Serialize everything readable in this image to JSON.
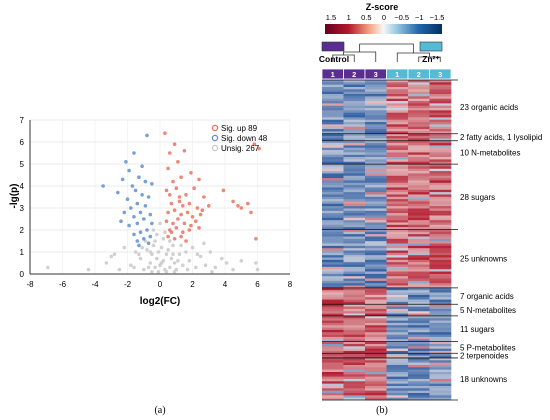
{
  "panel_a": {
    "caption": "(a)",
    "chart_data": {
      "type": "scatter",
      "xlabel": "log2(FC)",
      "ylabel": "-lg(p)",
      "xlim": [
        -8,
        8
      ],
      "ylim": [
        0,
        7
      ],
      "x_ticks": [
        -8,
        -6,
        -4,
        -2,
        0,
        2,
        4,
        6,
        8
      ],
      "y_ticks": [
        0,
        1,
        2,
        3,
        4,
        5,
        6,
        7
      ],
      "legend_position": "top-right",
      "series": [
        {
          "name": "Sig. up 89",
          "color": "#e8735f",
          "points": [
            [
              0.3,
              6.4
            ],
            [
              0.6,
              5.5
            ],
            [
              0.9,
              5.9
            ],
            [
              1.5,
              5.6
            ],
            [
              1.1,
              5.1
            ],
            [
              0.5,
              4.8
            ],
            [
              0.8,
              4.2
            ],
            [
              1.9,
              4.6
            ],
            [
              1.3,
              4.4
            ],
            [
              2.4,
              4.3
            ],
            [
              0.4,
              3.8
            ],
            [
              0.6,
              3.6
            ],
            [
              1.0,
              3.9
            ],
            [
              1.2,
              3.5
            ],
            [
              1.6,
              3.6
            ],
            [
              2.1,
              3.9
            ],
            [
              2.7,
              3.5
            ],
            [
              0.7,
              3.2
            ],
            [
              1.4,
              3.1
            ],
            [
              1.8,
              3.2
            ],
            [
              2.3,
              3.0
            ],
            [
              3.0,
              3.1
            ],
            [
              0.5,
              2.8
            ],
            [
              0.9,
              2.9
            ],
            [
              1.3,
              2.7
            ],
            [
              1.7,
              2.8
            ],
            [
              2.0,
              2.6
            ],
            [
              2.5,
              2.7
            ],
            [
              0.4,
              2.4
            ],
            [
              0.8,
              2.3
            ],
            [
              1.1,
              2.5
            ],
            [
              1.5,
              2.3
            ],
            [
              1.9,
              2.2
            ],
            [
              2.2,
              2.4
            ],
            [
              0.6,
              2.0
            ],
            [
              1.0,
              2.1
            ],
            [
              1.4,
              1.9
            ],
            [
              1.8,
              2.0
            ],
            [
              2.4,
              2.1
            ],
            [
              0.5,
              1.7
            ],
            [
              0.9,
              1.6
            ],
            [
              1.3,
              1.7
            ],
            [
              1.6,
              1.5
            ],
            [
              4.5,
              3.3
            ],
            [
              4.8,
              3.1
            ],
            [
              5.0,
              3.0
            ],
            [
              5.4,
              3.2
            ],
            [
              5.6,
              2.8
            ],
            [
              5.8,
              5.9
            ],
            [
              6.1,
              5.7
            ],
            [
              3.9,
              3.8
            ],
            [
              5.9,
              1.6
            ],
            [
              1.2,
              3.3
            ],
            [
              2.6,
              2.9
            ],
            [
              0.7,
              1.9
            ]
          ]
        },
        {
          "name": "Sig. down 48",
          "color": "#5f8fd0",
          "points": [
            [
              -0.8,
              6.3
            ],
            [
              -2.1,
              5.1
            ],
            [
              -1.9,
              4.7
            ],
            [
              -1.6,
              5.5
            ],
            [
              -2.3,
              4.3
            ],
            [
              -1.3,
              4.4
            ],
            [
              -1.7,
              4.0
            ],
            [
              -0.9,
              4.2
            ],
            [
              -1.5,
              3.8
            ],
            [
              -1.1,
              3.6
            ],
            [
              -0.7,
              3.5
            ],
            [
              -2.0,
              3.4
            ],
            [
              -1.4,
              3.2
            ],
            [
              -0.9,
              3.1
            ],
            [
              -1.8,
              3.0
            ],
            [
              -1.2,
              2.8
            ],
            [
              -0.6,
              2.7
            ],
            [
              -2.2,
              2.8
            ],
            [
              -1.6,
              2.6
            ],
            [
              -1.0,
              2.5
            ],
            [
              -0.5,
              2.3
            ],
            [
              -1.4,
              2.3
            ],
            [
              -1.9,
              2.2
            ],
            [
              -0.8,
              2.0
            ],
            [
              -1.2,
              1.9
            ],
            [
              -1.6,
              1.8
            ],
            [
              -0.6,
              1.7
            ],
            [
              -1.0,
              1.6
            ],
            [
              -1.4,
              1.5
            ],
            [
              -0.7,
              1.4
            ],
            [
              -3.5,
              4.0
            ],
            [
              -2.6,
              3.7
            ],
            [
              -1.1,
              4.9
            ],
            [
              -0.5,
              4.1
            ],
            [
              -2.4,
              2.4
            ],
            [
              -1.3,
              1.3
            ]
          ]
        },
        {
          "name": "Unsig. 267",
          "color": "#c9c9c9",
          "points": [
            [
              -6.9,
              0.3
            ],
            [
              -3.3,
              0.5
            ],
            [
              -4.4,
              0.2
            ],
            [
              -2.8,
              0.9
            ],
            [
              -2.2,
              1.2
            ],
            [
              -1.8,
              0.4
            ],
            [
              -1.5,
              1.0
            ],
            [
              -1.2,
              0.7
            ],
            [
              -1.0,
              0.2
            ],
            [
              -0.8,
              1.1
            ],
            [
              -0.6,
              0.5
            ],
            [
              -0.5,
              0.9
            ],
            [
              -0.4,
              1.3
            ],
            [
              -0.3,
              0.3
            ],
            [
              -0.2,
              0.7
            ],
            [
              -0.1,
              1.0
            ],
            [
              0.0,
              0.4
            ],
            [
              0.1,
              1.2
            ],
            [
              0.2,
              0.6
            ],
            [
              0.3,
              0.2
            ],
            [
              0.4,
              0.9
            ],
            [
              0.5,
              1.1
            ],
            [
              0.6,
              0.3
            ],
            [
              0.7,
              0.7
            ],
            [
              0.8,
              1.3
            ],
            [
              0.9,
              0.5
            ],
            [
              1.0,
              0.2
            ],
            [
              1.2,
              0.9
            ],
            [
              1.4,
              0.4
            ],
            [
              1.6,
              1.0
            ],
            [
              1.8,
              0.6
            ],
            [
              2.0,
              1.2
            ],
            [
              2.2,
              0.3
            ],
            [
              2.5,
              0.8
            ],
            [
              2.8,
              0.4
            ],
            [
              3.1,
              1.0
            ],
            [
              3.4,
              0.3
            ],
            [
              3.8,
              0.7
            ],
            [
              4.1,
              0.5
            ],
            [
              4.5,
              0.2
            ],
            [
              5.0,
              0.6
            ],
            [
              5.9,
              0.5
            ],
            [
              6.0,
              0.2
            ],
            [
              -0.4,
              2.0
            ],
            [
              0.2,
              1.6
            ],
            [
              -0.2,
              1.8
            ],
            [
              0.0,
              2.3
            ],
            [
              -1.3,
              0.9
            ],
            [
              1.3,
              1.3
            ],
            [
              -0.7,
              0.3
            ],
            [
              0.6,
              1.5
            ],
            [
              -0.9,
              1.5
            ],
            [
              0.4,
              0.1
            ],
            [
              -0.1,
              0.1
            ],
            [
              1.1,
              0.6
            ],
            [
              -1.6,
              0.3
            ],
            [
              2.3,
              0.9
            ],
            [
              -2.5,
              0.2
            ],
            [
              0.9,
              0.1
            ],
            [
              -0.3,
              1.5
            ],
            [
              0.3,
              1.9
            ],
            [
              -0.5,
              0.1
            ],
            [
              1.7,
              0.2
            ],
            [
              -1.1,
              1.2
            ],
            [
              0.8,
              0.9
            ],
            [
              2.7,
              1.4
            ],
            [
              3.2,
              0.1
            ],
            [
              -3.0,
              0.8
            ],
            [
              0.1,
              0.5
            ],
            [
              -0.6,
              1.0
            ]
          ]
        }
      ]
    }
  },
  "panel_b": {
    "caption": "(b)",
    "chart_data": {
      "type": "heatmap",
      "colorbar_title": "Z-score",
      "colorbar_ticks": [
        "1.5",
        "1",
        "0.5",
        "0",
        "−0.5",
        "−1",
        "−1.5"
      ],
      "groups": [
        {
          "name": "Control",
          "color": "#5a2d91",
          "columns": [
            "1",
            "2",
            "3"
          ]
        },
        {
          "name": "Zn²⁺",
          "color": "#56b9d6",
          "columns": [
            "1",
            "2",
            "3"
          ]
        }
      ],
      "row_labels": [
        {
          "text": "23 organic acids",
          "rows": 23
        },
        {
          "text": "2 fatty acids, 1 lysolipid",
          "rows": 3
        },
        {
          "text": "10 N-metabolites",
          "rows": 10
        },
        {
          "text": "28 sugars",
          "rows": 28
        },
        {
          "text": "25 unknowns",
          "rows": 25
        },
        {
          "text": "7 organic acids",
          "rows": 7
        },
        {
          "text": "5 N-metabolites",
          "rows": 5
        },
        {
          "text": "11 sugars",
          "rows": 11
        },
        {
          "text": "5 P-metabolites",
          "rows": 5
        },
        {
          "text": "2 terpenoides",
          "rows": 2
        },
        {
          "text": "18 unknowns",
          "rows": 18
        }
      ],
      "up_in_zn_blocks": 5,
      "colors": {
        "low": "#2c5aa0",
        "mid": "#f7f2ee",
        "high": "#b2182b"
      }
    }
  }
}
